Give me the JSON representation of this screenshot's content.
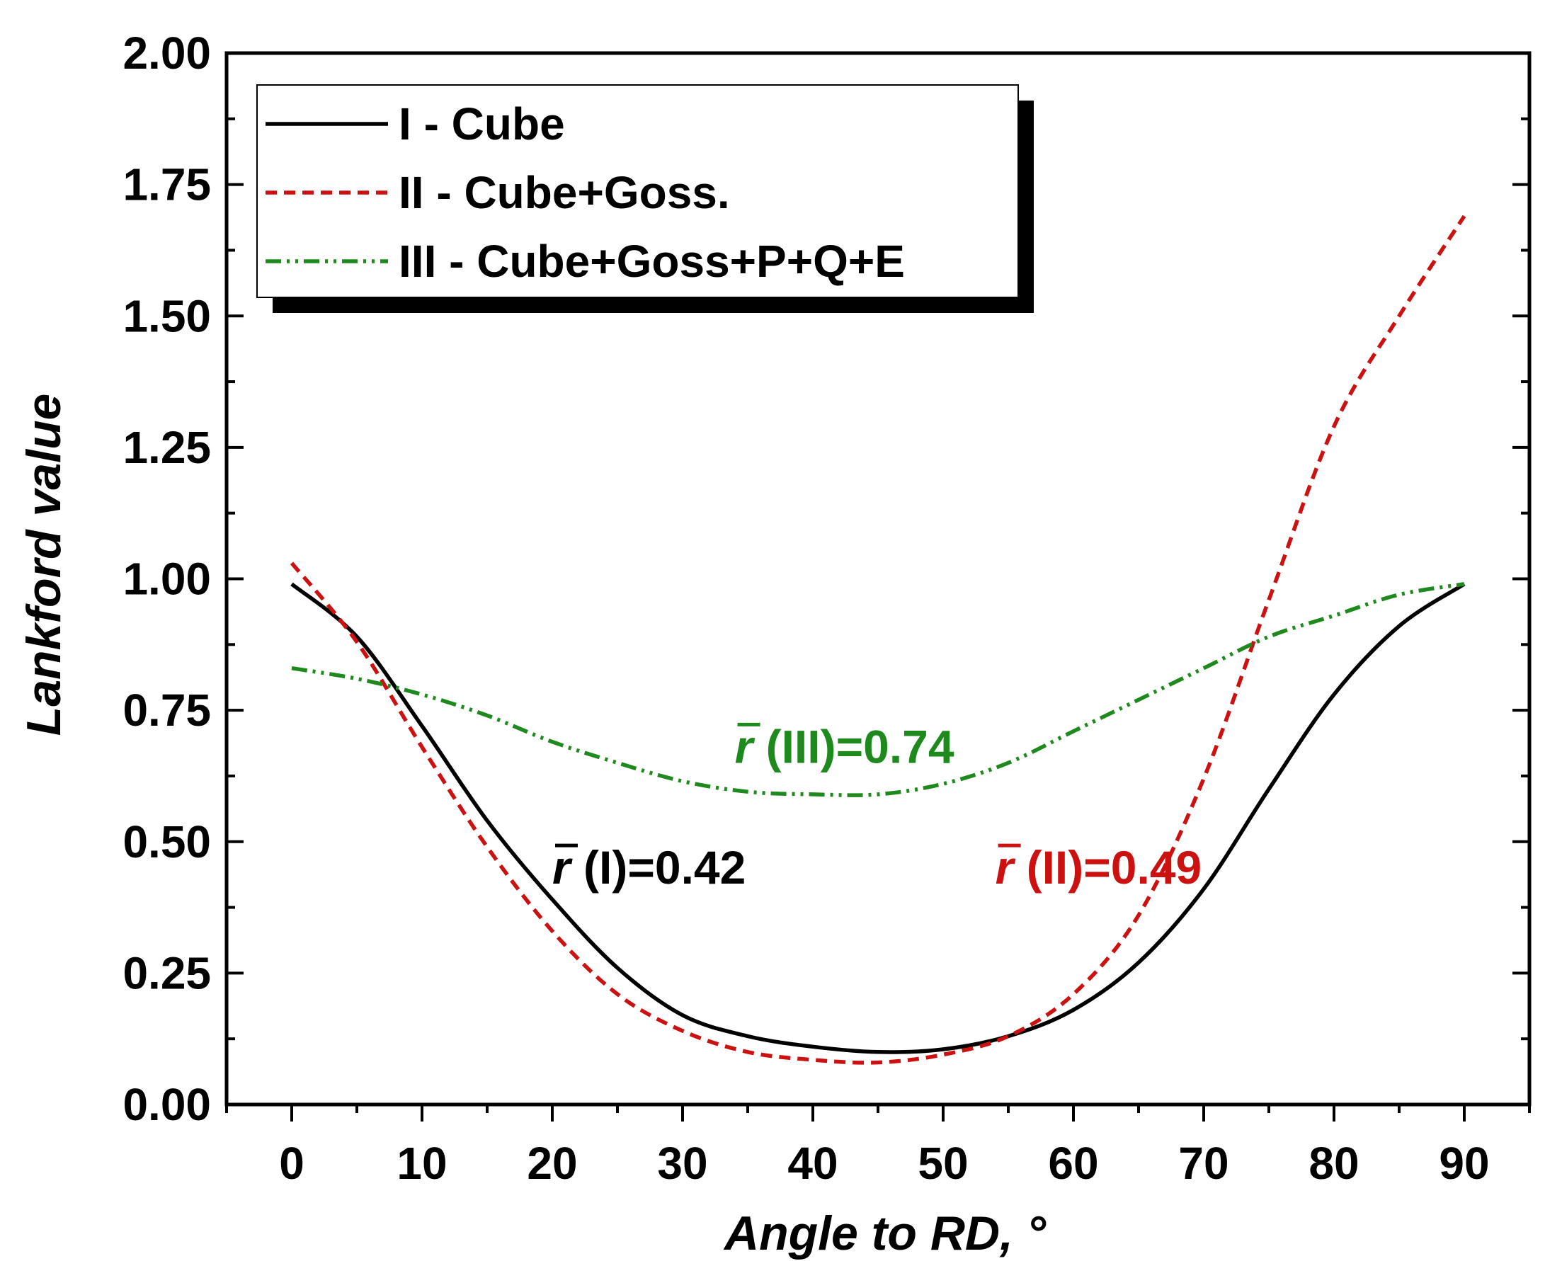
{
  "chart_data": {
    "type": "line",
    "title": "",
    "xlabel": "Angle to RD, °",
    "ylabel": "Lankford value",
    "xlim": [
      -5,
      95
    ],
    "ylim": [
      0,
      2
    ],
    "xticks": [
      0,
      10,
      20,
      30,
      40,
      50,
      60,
      70,
      80,
      90
    ],
    "xtick_labels": [
      "0",
      "10",
      "20",
      "30",
      "40",
      "50",
      "60",
      "70",
      "80",
      "90"
    ],
    "yticks": [
      0,
      0.25,
      0.5,
      0.75,
      1.0,
      1.25,
      1.5,
      1.75,
      2.0
    ],
    "ytick_labels": [
      "0.00",
      "0.25",
      "0.50",
      "0.75",
      "1.00",
      "1.25",
      "1.50",
      "1.75",
      "2.00"
    ],
    "grid": false,
    "legend_position": "top-left",
    "x": [
      0,
      5,
      10,
      15,
      20,
      25,
      30,
      35,
      40,
      45,
      50,
      55,
      60,
      65,
      70,
      75,
      80,
      85,
      90
    ],
    "series": [
      {
        "name": "I - Cube",
        "color": "#000000",
        "style": "solid",
        "values": [
          0.99,
          0.89,
          0.72,
          0.54,
          0.39,
          0.26,
          0.17,
          0.13,
          0.11,
          0.1,
          0.105,
          0.13,
          0.18,
          0.27,
          0.41,
          0.6,
          0.78,
          0.91,
          0.99
        ]
      },
      {
        "name": "II - Cube+Goss.",
        "color": "#cc1111",
        "style": "dashed",
        "values": [
          1.03,
          0.88,
          0.68,
          0.49,
          0.33,
          0.21,
          0.14,
          0.1,
          0.085,
          0.08,
          0.095,
          0.13,
          0.21,
          0.36,
          0.62,
          0.96,
          1.29,
          1.5,
          1.69
        ]
      },
      {
        "name": "III - Cube+Goss+P+Q+E",
        "color": "#1e8a1e",
        "style": "dashdotdot",
        "values": [
          0.83,
          0.81,
          0.78,
          0.74,
          0.69,
          0.65,
          0.615,
          0.595,
          0.59,
          0.59,
          0.61,
          0.65,
          0.71,
          0.77,
          0.83,
          0.89,
          0.93,
          0.97,
          0.99
        ]
      }
    ],
    "annotations": [
      {
        "symbol": "r",
        "text": " (I)=0.42",
        "color": "#000000",
        "x": 20,
        "y": 0.42
      },
      {
        "symbol": "r",
        "text": " (II)=0.49",
        "color": "#cc1111",
        "x": 54,
        "y": 0.42
      },
      {
        "symbol": "r",
        "text": " (III)=0.74",
        "color": "#1e8a1e",
        "x": 34,
        "y": 0.65
      }
    ]
  }
}
